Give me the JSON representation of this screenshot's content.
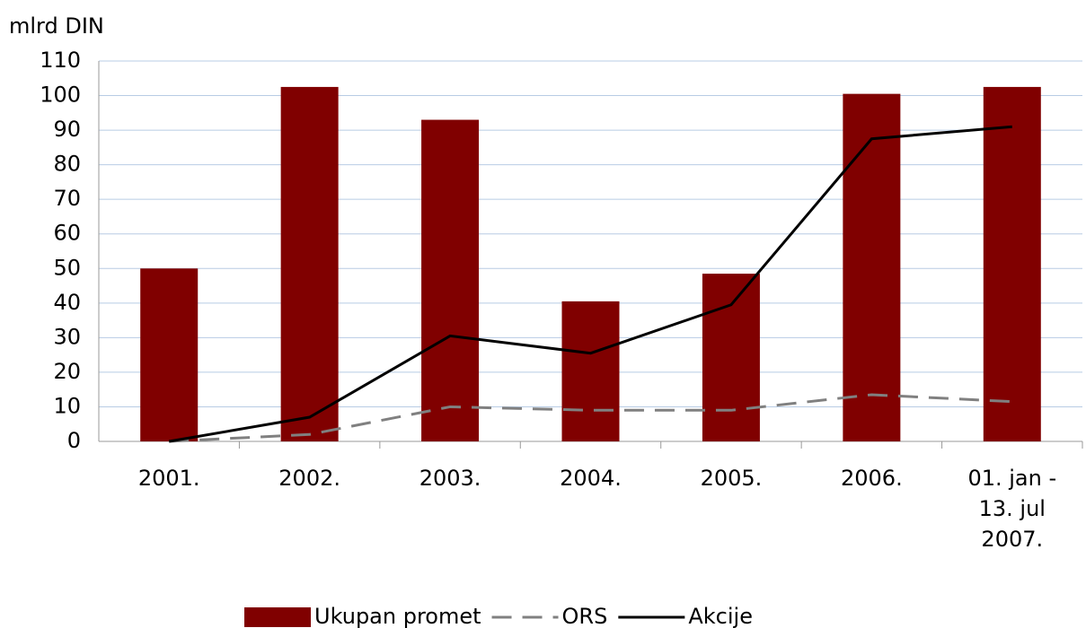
{
  "chart_data": {
    "type": "bar_line",
    "y_label": "mlrd DIN",
    "categories": [
      "2001.",
      "2002.",
      "2003.",
      "2004.",
      "2005.",
      "2006.",
      "01. jan - 13. jul 2007."
    ],
    "series": [
      {
        "name": "Ukupan promet",
        "type": "bar",
        "color": "#800000",
        "values": [
          50,
          102.5,
          93,
          40.5,
          48.5,
          100.5,
          102.5
        ]
      },
      {
        "name": "ORS",
        "type": "line",
        "dashed": true,
        "color": "#808080",
        "values": [
          0,
          2,
          10,
          9,
          9,
          13.5,
          11.5
        ]
      },
      {
        "name": "Akcije",
        "type": "line",
        "color": "#000000",
        "values": [
          0,
          7,
          30.5,
          25.5,
          39.5,
          87.5,
          91
        ]
      }
    ],
    "ylim": [
      0,
      110
    ],
    "yticks": [
      0,
      10,
      20,
      30,
      40,
      50,
      60,
      70,
      80,
      90,
      100,
      110
    ],
    "grid": true,
    "legend": "bottom"
  }
}
